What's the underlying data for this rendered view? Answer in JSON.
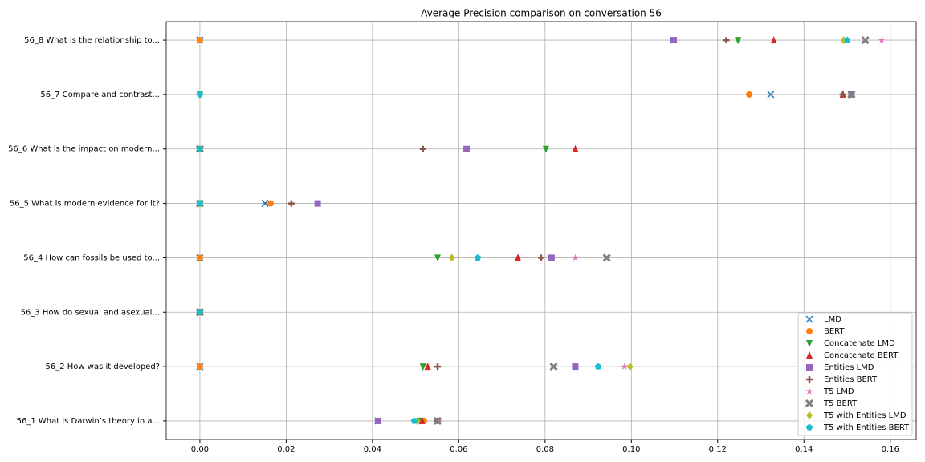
{
  "chart_data": {
    "type": "scatter",
    "title": "Average Precision comparison on conversation 56",
    "categories": [
      "56_1 What is Darwin’s theory in a...",
      "56_2 How was it developed?",
      "56_3 How do sexual and asexual...",
      "56_4 How can fossils be used to...",
      "56_5 What is modern evidence for it?",
      "56_6 What is the impact on modern...",
      "56_7 Compare and contrast...",
      "56_8 What is the relationship to..."
    ],
    "xlim": [
      -0.0078,
      0.166
    ],
    "xticks": [
      {
        "value": 0,
        "label": "0.00"
      },
      {
        "value": 0.02,
        "label": "0.02"
      },
      {
        "value": 0.04,
        "label": "0.04"
      },
      {
        "value": 0.06,
        "label": "0.06"
      },
      {
        "value": 0.08,
        "label": "0.08"
      },
      {
        "value": 0.1,
        "label": "0.10"
      },
      {
        "value": 0.12,
        "label": "0.12"
      },
      {
        "value": 0.14,
        "label": "0.14"
      },
      {
        "value": 0.16,
        "label": "0.16"
      }
    ],
    "grid": true,
    "legend": "lower right",
    "series": [
      {
        "name": "LMD",
        "color": "#1f77b4",
        "marker": "x",
        "values": [
          0.0413,
          0,
          0,
          0,
          0.0151,
          0,
          0.1323,
          0
        ]
      },
      {
        "name": "BERT",
        "color": "#ff7f0e",
        "marker": "circle",
        "values": [
          0.0519,
          0,
          0,
          0,
          0.0164,
          0,
          0.1273,
          0
        ]
      },
      {
        "name": "Concatenate LMD",
        "color": "#2ca02c",
        "marker": "triangle-down",
        "values": [
          0.051,
          0.0517,
          0,
          0.0551,
          0,
          0.0802,
          0,
          0.1247
        ]
      },
      {
        "name": "Concatenate BERT",
        "color": "#d62728",
        "marker": "triangle-up",
        "values": [
          0.0515,
          0.0528,
          0,
          0.0737,
          0,
          0.087,
          0.149,
          0.133
        ]
      },
      {
        "name": "Entities LMD",
        "color": "#9467bd",
        "marker": "square",
        "values": [
          0.0413,
          0.087,
          0,
          0.0815,
          0.0273,
          0.0618,
          0.151,
          0.1098
        ]
      },
      {
        "name": "Entities BERT",
        "color": "#8c564b",
        "marker": "plus",
        "values": [
          0.0551,
          0.0551,
          0,
          0.0791,
          0.0212,
          0.0517,
          0.149,
          0.122
        ]
      },
      {
        "name": "T5 LMD",
        "color": "#e377c2",
        "marker": "star",
        "values": [
          0.0553,
          0.0984,
          0,
          0.087,
          0,
          0,
          0,
          0.158
        ]
      },
      {
        "name": "T5 BERT",
        "color": "#7f7f7f",
        "marker": "x-filled",
        "values": [
          0.0551,
          0.082,
          0,
          0.0943,
          0,
          0,
          0.151,
          0.1542
        ]
      },
      {
        "name": "T5 with Entities LMD",
        "color": "#bcbd22",
        "marker": "diamond",
        "values": [
          0.0504,
          0.0997,
          0,
          0.0584,
          0,
          0,
          0,
          0.1492
        ]
      },
      {
        "name": "T5 with Entities BERT",
        "color": "#17becf",
        "marker": "pentagon",
        "values": [
          0.0497,
          0.0923,
          0,
          0.0644,
          0,
          0,
          0,
          0.15
        ]
      }
    ]
  }
}
